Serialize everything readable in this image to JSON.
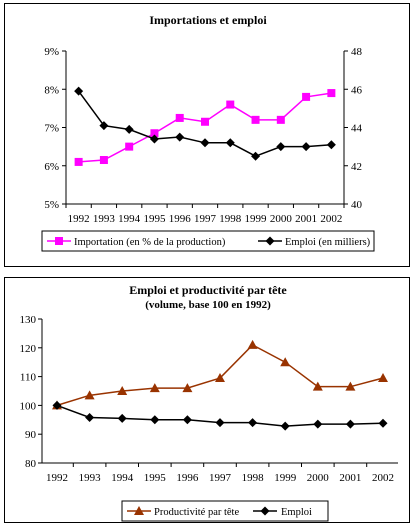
{
  "chart_data": [
    {
      "type": "line",
      "title": "Importations et emploi",
      "x": [
        "1992",
        "1993",
        "1994",
        "1995",
        "1996",
        "1997",
        "1998",
        "1999",
        "2000",
        "2001",
        "2002"
      ],
      "y_left": {
        "ticks": [
          "5%",
          "6%",
          "7%",
          "8%",
          "9%"
        ],
        "ylim": [
          5,
          9
        ]
      },
      "y_right": {
        "ticks": [
          "40",
          "42",
          "44",
          "46",
          "48"
        ],
        "ylim": [
          40,
          48
        ]
      },
      "legend_position": "bottom",
      "series": [
        {
          "name": "Importation (en % de la production)",
          "axis": "left",
          "marker": "square",
          "color": "#ff00ff",
          "values": [
            6.1,
            6.15,
            6.5,
            6.85,
            7.25,
            7.15,
            7.6,
            7.2,
            7.2,
            7.8,
            7.9
          ]
        },
        {
          "name": "Emploi (en milliers)",
          "axis": "right",
          "marker": "diamond",
          "color": "#000000",
          "values": [
            45.9,
            44.1,
            43.9,
            43.4,
            43.5,
            43.2,
            43.2,
            42.5,
            43.0,
            43.0,
            43.1
          ]
        }
      ],
      "grid": false
    },
    {
      "type": "line",
      "title": "Emploi et productivité par tête",
      "subtitle": "(volume, base 100 en 1992)",
      "x": [
        "1992",
        "1993",
        "1994",
        "1995",
        "1996",
        "1997",
        "1998",
        "1999",
        "2000",
        "2001",
        "2002"
      ],
      "y": {
        "ticks": [
          "80",
          "90",
          "100",
          "110",
          "120",
          "130"
        ],
        "ylim": [
          80,
          130
        ]
      },
      "legend_position": "bottom",
      "series": [
        {
          "name": "Productivité par tête",
          "marker": "triangle",
          "color": "#993300",
          "values": [
            100,
            103.5,
            105,
            106,
            106,
            109.5,
            121,
            115,
            106.5,
            106.5,
            109.5
          ]
        },
        {
          "name": "Emploi",
          "marker": "diamond",
          "color": "#000000",
          "values": [
            100,
            95.8,
            95.5,
            95,
            95,
            94,
            94,
            92.8,
            93.5,
            93.5,
            93.8
          ]
        }
      ],
      "grid": false
    }
  ]
}
